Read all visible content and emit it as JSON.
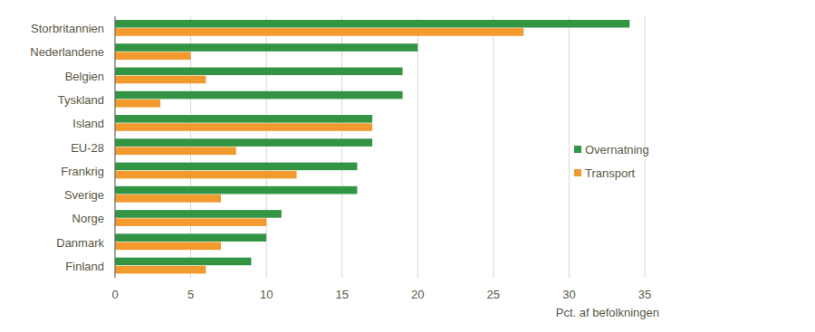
{
  "chart_data": {
    "type": "bar",
    "orientation": "horizontal",
    "categories": [
      "Storbritannien",
      "Nederlandene",
      "Belgien",
      "Tyskland",
      "Island",
      "EU-28",
      "Frankrig",
      "Sverige",
      "Norge",
      "Danmark",
      "Finland"
    ],
    "series": [
      {
        "name": "Overnatning",
        "color": "#339444",
        "values": [
          34,
          20,
          19,
          19,
          17,
          17,
          16,
          16,
          11,
          10,
          9
        ]
      },
      {
        "name": "Transport",
        "color": "#f29a2e",
        "values": [
          27,
          5,
          6,
          3,
          17,
          8,
          12,
          7,
          10,
          7,
          6
        ]
      }
    ],
    "xlabel": "Pct. af befolkningen",
    "xlim": [
      0,
      35
    ],
    "xticks": [
      0,
      5,
      10,
      15,
      20,
      25,
      30,
      35
    ],
    "grid": true,
    "legend": "right"
  }
}
